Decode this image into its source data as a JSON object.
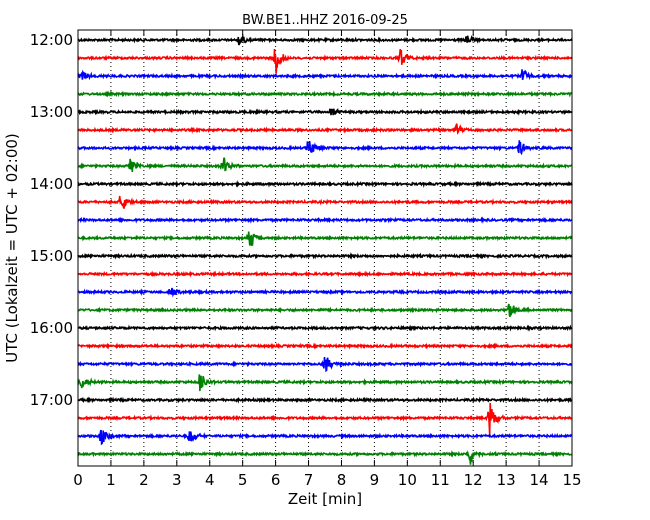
{
  "chart_data": {
    "type": "line",
    "title": "BW.BE1..HHZ 2016-09-25",
    "xlabel": "Zeit  [min]",
    "ylabel": "UTC (Lokalzeit = UTC + 02:00)",
    "xlim": [
      0,
      15
    ],
    "x_ticks": [
      "0",
      "1",
      "2",
      "3",
      "4",
      "5",
      "6",
      "7",
      "8",
      "9",
      "10",
      "11",
      "12",
      "13",
      "14",
      "15"
    ],
    "y_ticks": [
      "12:00",
      "13:00",
      "14:00",
      "15:00",
      "16:00",
      "17:00"
    ],
    "grid": "vertical dotted",
    "colors": [
      "#000000",
      "#ff0000",
      "#0000ff",
      "#008000"
    ],
    "series": [
      {
        "name": "12:00",
        "events": [
          {
            "x": 4.9,
            "amp": 0.35
          },
          {
            "x": 11.8,
            "amp": 0.25
          }
        ]
      },
      {
        "name": "12:15",
        "events": [
          {
            "x": 6.0,
            "amp": 0.9
          },
          {
            "x": 9.8,
            "amp": 0.6
          }
        ]
      },
      {
        "name": "12:30",
        "events": [
          {
            "x": 0.1,
            "amp": 0.35
          },
          {
            "x": 13.5,
            "amp": 0.5
          }
        ]
      },
      {
        "name": "12:45",
        "events": []
      },
      {
        "name": "13:00",
        "events": [
          {
            "x": 7.7,
            "amp": 0.3
          }
        ]
      },
      {
        "name": "13:15",
        "events": [
          {
            "x": 11.5,
            "amp": 0.35
          }
        ]
      },
      {
        "name": "13:30",
        "events": [
          {
            "x": 7.0,
            "amp": 0.6
          },
          {
            "x": 13.4,
            "amp": 0.45
          }
        ]
      },
      {
        "name": "13:45",
        "events": [
          {
            "x": 1.6,
            "amp": 0.55
          },
          {
            "x": 4.4,
            "amp": 0.55
          }
        ]
      },
      {
        "name": "14:00",
        "events": []
      },
      {
        "name": "14:15",
        "events": [
          {
            "x": 1.3,
            "amp": 0.6
          }
        ]
      },
      {
        "name": "14:30",
        "events": []
      },
      {
        "name": "14:45",
        "events": [
          {
            "x": 5.2,
            "amp": 0.65
          }
        ]
      },
      {
        "name": "15:00",
        "events": []
      },
      {
        "name": "15:15",
        "events": []
      },
      {
        "name": "15:30",
        "events": [
          {
            "x": 2.8,
            "amp": 0.4
          }
        ]
      },
      {
        "name": "15:45",
        "events": [
          {
            "x": 13.1,
            "amp": 0.5
          }
        ]
      },
      {
        "name": "16:00",
        "events": []
      },
      {
        "name": "16:15",
        "events": []
      },
      {
        "name": "16:30",
        "events": [
          {
            "x": 7.5,
            "amp": 0.6
          }
        ]
      },
      {
        "name": "16:45",
        "events": [
          {
            "x": 0.1,
            "amp": 0.4
          },
          {
            "x": 3.7,
            "amp": 0.6
          }
        ]
      },
      {
        "name": "17:00",
        "events": []
      },
      {
        "name": "17:15",
        "events": [
          {
            "x": 12.5,
            "amp": 0.9
          }
        ]
      },
      {
        "name": "17:30",
        "events": [
          {
            "x": 0.7,
            "amp": 0.55
          },
          {
            "x": 3.4,
            "amp": 0.45
          }
        ]
      },
      {
        "name": "17:45",
        "events": [
          {
            "x": 11.9,
            "amp": 0.6
          }
        ]
      }
    ]
  }
}
